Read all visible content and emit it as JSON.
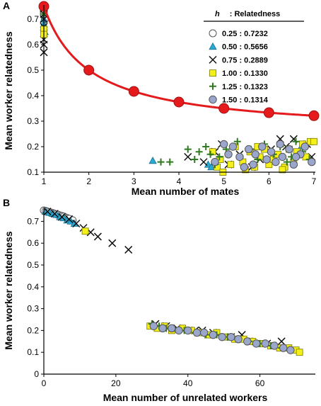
{
  "chart_data": [
    {
      "panel": "A",
      "type": "scatter",
      "title": "",
      "xlabel": "Mean number of mates",
      "ylabel": "Mean worker relatedness",
      "xlim": [
        1,
        7
      ],
      "ylim": [
        0.1,
        0.75
      ],
      "xticks": [
        "1",
        "2",
        "3",
        "4",
        "5",
        "6",
        "7"
      ],
      "yticks": [
        "0.1",
        "0.2",
        "0.3",
        "0.4",
        "0.5",
        "0.6",
        "0.7"
      ],
      "grid": false,
      "legend": {
        "placement": "top-right",
        "header_h": "h",
        "header_rest": ": Relatedness",
        "entries": [
          {
            "label": "0.25 : 0.7232",
            "marker": "circle-open"
          },
          {
            "label": "0.50 : 0.5656",
            "marker": "triangle"
          },
          {
            "label": "0.75 : 0.2889",
            "marker": "x"
          },
          {
            "label": "1.00 : 0.1330",
            "marker": "square"
          },
          {
            "label": "1.25 : 0.1323",
            "marker": "plus"
          },
          {
            "label": "1.50 : 0.1314",
            "marker": "circle-filled"
          }
        ]
      },
      "curve": {
        "x": [
          1,
          2,
          3,
          4,
          5,
          6,
          7
        ],
        "y": [
          0.75,
          0.5,
          0.4167,
          0.375,
          0.35,
          0.3333,
          0.3214
        ],
        "color": "#e41a1c"
      },
      "series": [
        {
          "marker": "circle-open",
          "x": [
            1,
            1,
            1,
            1,
            1.02
          ],
          "y": [
            0.745,
            0.74,
            0.73,
            0.72,
            0.7
          ]
        },
        {
          "marker": "triangle",
          "x": [
            1,
            1,
            1.02,
            3.42,
            4.65,
            4.72,
            6.72
          ],
          "y": [
            0.7,
            0.68,
            0.65,
            0.145,
            0.13,
            0.12,
            0.2
          ]
        },
        {
          "marker": "x",
          "x": [
            1,
            1,
            1,
            1,
            1,
            1,
            4.2,
            4.55,
            4.95,
            5.1,
            5.35,
            5.8,
            6.05,
            6.25,
            6.38,
            6.55,
            6.85,
            6.95,
            5.62,
            4.8
          ],
          "y": [
            0.72,
            0.7,
            0.67,
            0.62,
            0.6,
            0.57,
            0.16,
            0.14,
            0.21,
            0.13,
            0.17,
            0.15,
            0.19,
            0.23,
            0.2,
            0.23,
            0.21,
            0.16,
            0.12,
            0.18
          ]
        },
        {
          "marker": "square",
          "x": [
            1,
            1,
            4.75,
            4.85,
            4.92,
            5.25,
            5.42,
            5.48,
            5.58,
            5.68,
            5.8,
            5.9,
            6.0,
            6.1,
            6.2,
            6.35,
            6.45,
            6.55,
            6.75,
            6.82,
            6.92,
            7.0,
            5.15,
            5.75,
            6.3,
            6.62,
            4.98
          ],
          "y": [
            0.66,
            0.64,
            0.18,
            0.12,
            0.15,
            0.2,
            0.14,
            0.11,
            0.18,
            0.12,
            0.16,
            0.19,
            0.13,
            0.15,
            0.17,
            0.12,
            0.19,
            0.14,
            0.21,
            0.16,
            0.22,
            0.22,
            0.13,
            0.2,
            0.11,
            0.18,
            0.1
          ]
        },
        {
          "marker": "plus",
          "x": [
            1,
            3.6,
            3.8,
            4.2,
            4.45,
            4.6,
            4.7,
            4.8,
            4.9,
            5.3,
            5.6,
            5.75,
            5.9,
            6.1,
            6.25,
            6.4,
            6.6,
            6.75,
            6.9,
            4.35,
            5.05,
            6.5
          ],
          "y": [
            0.72,
            0.14,
            0.14,
            0.19,
            0.18,
            0.2,
            0.17,
            0.13,
            0.16,
            0.22,
            0.19,
            0.15,
            0.21,
            0.17,
            0.2,
            0.14,
            0.22,
            0.18,
            0.15,
            0.15,
            0.19,
            0.16
          ]
        },
        {
          "marker": "circle-filled",
          "x": [
            4.8,
            5.0,
            5.1,
            5.2,
            5.35,
            5.55,
            5.65,
            5.7,
            5.85,
            5.95,
            6.05,
            6.15,
            6.3,
            6.45,
            6.55,
            6.7,
            6.8,
            6.95,
            5.45,
            6.25,
            6.6
          ],
          "y": [
            0.14,
            0.21,
            0.17,
            0.2,
            0.16,
            0.19,
            0.13,
            0.17,
            0.2,
            0.15,
            0.18,
            0.14,
            0.16,
            0.19,
            0.13,
            0.17,
            0.2,
            0.14,
            0.12,
            0.21,
            0.16
          ]
        }
      ]
    },
    {
      "panel": "B",
      "type": "scatter",
      "title": "",
      "xlabel": "Mean number of unrelated workers",
      "ylabel": "Mean worker relatedness",
      "xlim": [
        0,
        75
      ],
      "ylim": [
        0,
        0.75
      ],
      "xticks": [
        "0",
        "20",
        "40",
        "60"
      ],
      "yticks": [
        "0",
        "0.1",
        "0.2",
        "0.3",
        "0.4",
        "0.5",
        "0.6",
        "0.7"
      ],
      "grid": false,
      "series": [
        {
          "marker": "circle-open",
          "x": [
            0,
            0.5,
            1,
            1.5,
            2,
            2.5,
            3,
            3.5,
            4,
            4.5,
            5,
            5.5,
            6,
            6.5,
            7,
            8
          ],
          "y": [
            0.75,
            0.748,
            0.745,
            0.742,
            0.74,
            0.738,
            0.735,
            0.732,
            0.73,
            0.727,
            0.725,
            0.722,
            0.718,
            0.715,
            0.712,
            0.705
          ]
        },
        {
          "marker": "triangle",
          "x": [
            0.5,
            1.5,
            2.5,
            3.5,
            4.5,
            5.5,
            6.5,
            7.5,
            8.5,
            64.5
          ],
          "y": [
            0.745,
            0.74,
            0.735,
            0.73,
            0.72,
            0.715,
            0.705,
            0.7,
            0.69,
            0.13
          ]
        },
        {
          "marker": "x",
          "x": [
            1,
            3,
            5,
            7,
            9,
            11,
            13,
            15,
            19,
            23.5,
            31,
            37,
            42,
            47,
            52,
            57,
            62,
            66,
            34,
            44,
            55
          ],
          "y": [
            0.745,
            0.735,
            0.72,
            0.71,
            0.69,
            0.67,
            0.65,
            0.63,
            0.6,
            0.57,
            0.23,
            0.21,
            0.2,
            0.19,
            0.17,
            0.15,
            0.14,
            0.15,
            0.22,
            0.2,
            0.18
          ]
        },
        {
          "marker": "square",
          "x": [
            11.5,
            29.5,
            31.5,
            33.5,
            35.5,
            38.5,
            41,
            43.5,
            45.5,
            48,
            50.5,
            53,
            55.5,
            58,
            60.5,
            63,
            65.5,
            68,
            70,
            71
          ],
          "y": [
            0.655,
            0.22,
            0.21,
            0.22,
            0.2,
            0.21,
            0.2,
            0.19,
            0.18,
            0.19,
            0.17,
            0.16,
            0.16,
            0.15,
            0.14,
            0.13,
            0.12,
            0.12,
            0.11,
            0.1
          ]
        },
        {
          "marker": "plus",
          "x": [
            30,
            32,
            34,
            36,
            39,
            42,
            45,
            48,
            51,
            54,
            57,
            60,
            63,
            66
          ],
          "y": [
            0.23,
            0.22,
            0.21,
            0.21,
            0.2,
            0.19,
            0.18,
            0.18,
            0.17,
            0.16,
            0.15,
            0.14,
            0.13,
            0.12
          ]
        },
        {
          "marker": "circle-filled",
          "x": [
            30.5,
            33,
            35.5,
            37.5,
            40,
            42.5,
            44.5,
            47,
            49.5,
            52,
            54,
            56.5,
            59,
            61.5,
            64,
            66.5,
            68.5
          ],
          "y": [
            0.22,
            0.21,
            0.21,
            0.2,
            0.2,
            0.19,
            0.19,
            0.18,
            0.17,
            0.17,
            0.16,
            0.15,
            0.14,
            0.14,
            0.13,
            0.12,
            0.11
          ]
        }
      ]
    }
  ]
}
